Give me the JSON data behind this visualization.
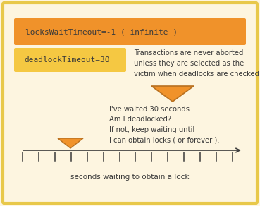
{
  "bg_color": "#fdf5e0",
  "border_color": "#e8c84a",
  "orange_box_color": "#f0922a",
  "yellow_box_color": "#f5c842",
  "text_color_dark": "#3a3a3a",
  "locks_label": "locksWaitTimeout=-1 ( infinite )",
  "deadlock_label": "deadlockTimeout=30",
  "annotation_text": "Transactions are never aborted\nunless they are selected as the\nvictim when deadlocks are checked.",
  "bubble_text": "I've waited 30 seconds.\nAm I deadlocked?\nIf not, keep waiting until\nI can obtain locks ( or forever ).",
  "axis_label": "seconds waiting to obtain a lock",
  "tick_count": 14,
  "arrow_triangle_color": "#f0922a",
  "arrow_triangle_outline": "#b87020",
  "fig_width": 3.69,
  "fig_height": 2.92
}
